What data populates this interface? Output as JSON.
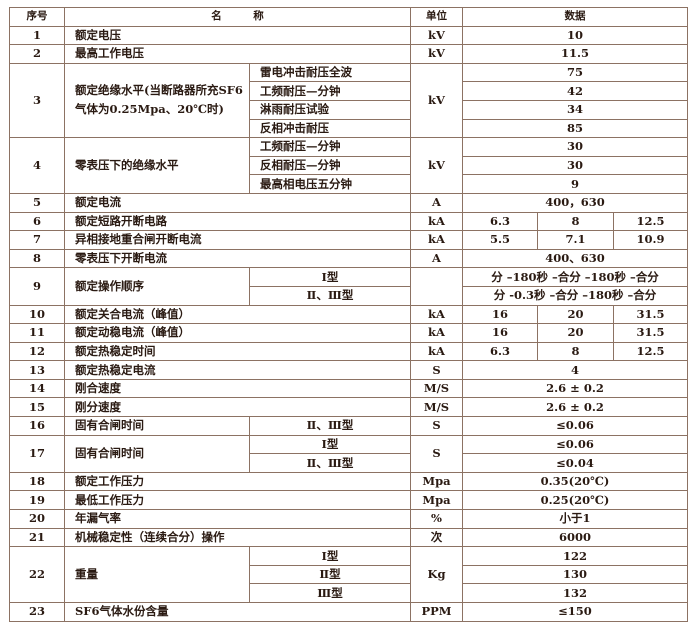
{
  "header": {
    "no": "序号",
    "name": "名　　　称",
    "unit": "单位",
    "data": "数据"
  },
  "rows": [
    {
      "no": "1",
      "name": "额定电压",
      "unit": "kV",
      "value": "10"
    },
    {
      "no": "2",
      "name": "最高工作电压",
      "unit": "kV",
      "value": "11.5"
    },
    {
      "no": "3",
      "name": "额定绝缘水平(当断路器所充SF6气体为0.25Mpa、20℃时)",
      "unit": "kV",
      "subs": [
        {
          "label": "雷电冲击耐压全波",
          "value": "75"
        },
        {
          "label": "工频耐压—分钟",
          "value": "42"
        },
        {
          "label": "淋雨耐压试验",
          "value": "34"
        },
        {
          "label": "反相冲击耐压",
          "value": "85"
        }
      ]
    },
    {
      "no": "4",
      "name": "零表压下的绝缘水平",
      "unit": "kV",
      "subs": [
        {
          "label": "工频耐压—分钟",
          "value": "30"
        },
        {
          "label": "反相耐压—分钟",
          "value": "30"
        },
        {
          "label": "最高相电压五分钟",
          "value": "9"
        }
      ]
    },
    {
      "no": "5",
      "name": "额定电流",
      "unit": "A",
      "value": "400，630"
    },
    {
      "no": "6",
      "name": "额定短路开断电路",
      "unit": "kA",
      "values": [
        "6.3",
        "8",
        "12.5"
      ]
    },
    {
      "no": "7",
      "name": "异相接地重合闸开断电流",
      "unit": "kA",
      "values": [
        "5.5",
        "7.1",
        "10.9"
      ]
    },
    {
      "no": "8",
      "name": "零表压下开断电流",
      "unit": "A",
      "value": "400、630"
    },
    {
      "no": "9",
      "name": "额定操作顺序",
      "unit": "",
      "subs": [
        {
          "label": "Ⅰ型",
          "value": "分 –180秒 –合分 –180秒 –合分"
        },
        {
          "label": "Ⅱ、Ⅲ型",
          "value": "分 -0.3秒 –合分 –180秒 –合分"
        }
      ]
    },
    {
      "no": "10",
      "name": "额定关合电流（峰值）",
      "unit": "kA",
      "values": [
        "16",
        "20",
        "31.5"
      ]
    },
    {
      "no": "11",
      "name": "额定动稳电流（峰值）",
      "unit": "kA",
      "values": [
        "16",
        "20",
        "31.5"
      ]
    },
    {
      "no": "12",
      "name": "额定热稳定时间",
      "unit": "kA",
      "values": [
        "6.3",
        "8",
        "12.5"
      ]
    },
    {
      "no": "13",
      "name": "额定热稳定电流",
      "unit": "S",
      "value": "4"
    },
    {
      "no": "14",
      "name": "刚合速度",
      "unit": "M/S",
      "value": "2.6 ± 0.2"
    },
    {
      "no": "15",
      "name": "刚分速度",
      "unit": "M/S",
      "value": "2.6 ± 0.2"
    },
    {
      "no": "16",
      "name": "固有合闸时间",
      "unit": "S",
      "subs": [
        {
          "label": "Ⅱ、Ⅲ型",
          "value": "≤0.06"
        }
      ]
    },
    {
      "no": "17",
      "name": "固有合闸时间",
      "unit": "S",
      "subs": [
        {
          "label": "Ⅰ型",
          "value": "≤0.06"
        },
        {
          "label": "Ⅱ、Ⅲ型",
          "value": "≤0.04"
        }
      ]
    },
    {
      "no": "18",
      "name": "额定工作压力",
      "unit": "Mpa",
      "value": "0.35(20℃)"
    },
    {
      "no": "19",
      "name": "最低工作压力",
      "unit": "Mpa",
      "value": "0.25(20℃)"
    },
    {
      "no": "20",
      "name": "年漏气率",
      "unit": "%",
      "value": "小于1"
    },
    {
      "no": "21",
      "name": "机械稳定性（连续合分）操作",
      "unit": "次",
      "value": "6000"
    },
    {
      "no": "22",
      "name": "重量",
      "unit": "Kg",
      "subs": [
        {
          "label": "Ⅰ型",
          "value": "122"
        },
        {
          "label": "Ⅱ型",
          "value": "130"
        },
        {
          "label": "Ⅲ型",
          "value": "132"
        }
      ]
    },
    {
      "no": "23",
      "name": "SF6气体水份含量",
      "unit": "PPM",
      "value": "≤150"
    }
  ]
}
